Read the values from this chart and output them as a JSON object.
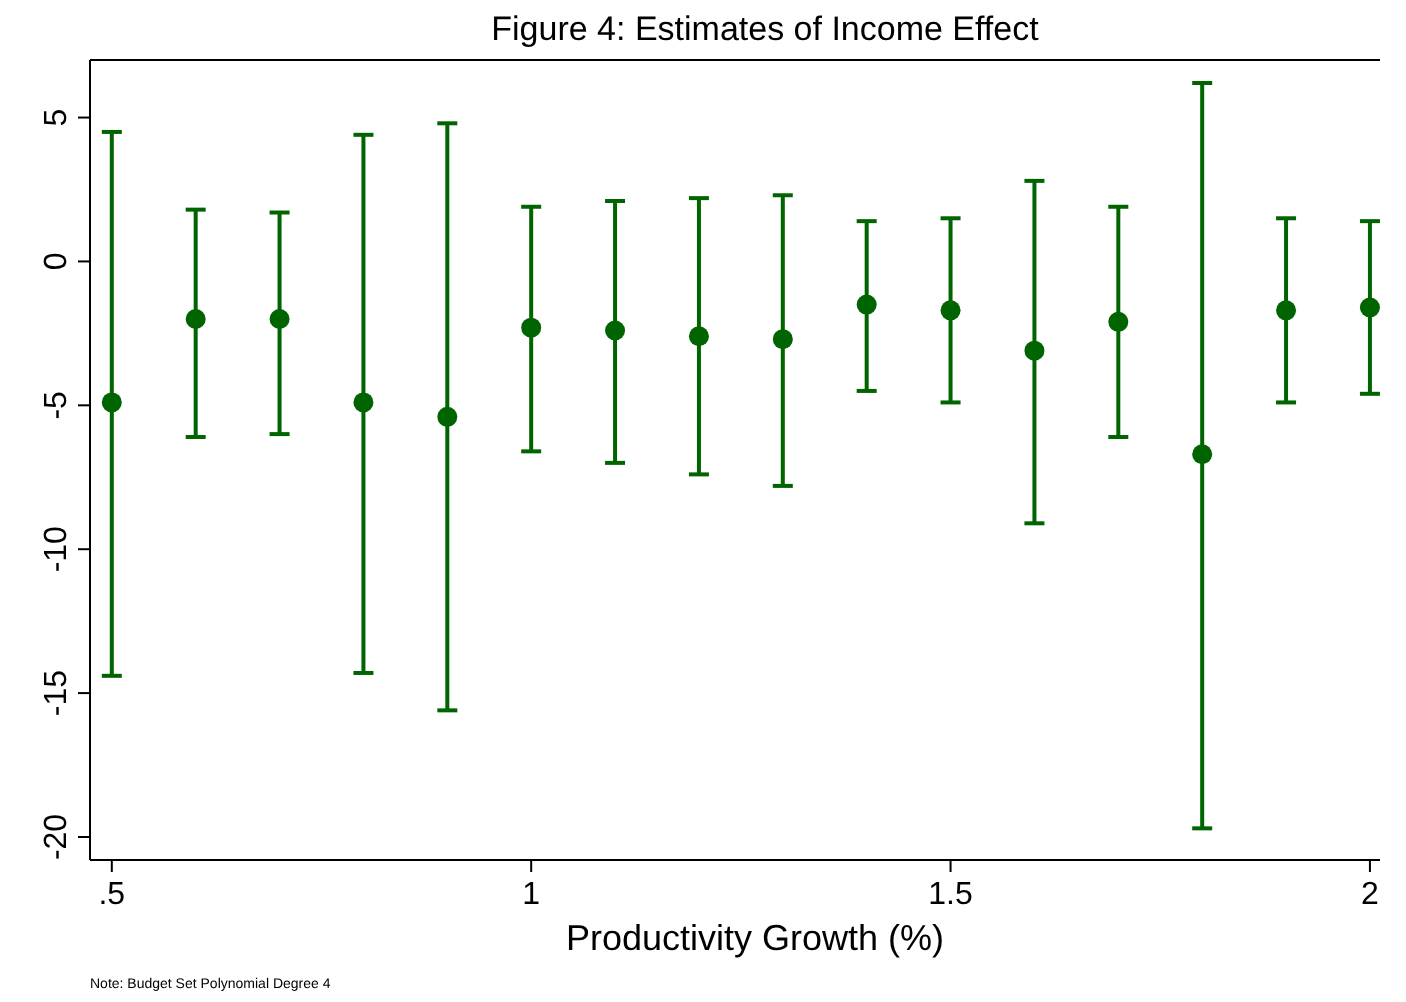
{
  "chart_data": {
    "type": "scatter",
    "title": "Figure 4: Estimates of Income Effect",
    "xlabel": "Productivity Growth (%)",
    "x": [
      0.5,
      0.6,
      0.7,
      0.8,
      0.9,
      1.0,
      1.1,
      1.2,
      1.3,
      1.4,
      1.5,
      1.6,
      1.7,
      1.8,
      1.9,
      2.0
    ],
    "series": [
      {
        "color": "#006400",
        "values": [
          -4.9,
          -2.0,
          -2.0,
          -4.9,
          -5.4,
          -2.3,
          -2.4,
          -2.6,
          -2.7,
          -1.5,
          -1.7,
          -3.1,
          -2.1,
          -6.7,
          -1.7,
          -1.6
        ],
        "errors": [
          [
            -14.4,
            4.5
          ],
          [
            -6.1,
            1.8
          ],
          [
            -6.0,
            1.7
          ],
          [
            -14.3,
            4.4
          ],
          [
            -15.6,
            4.8
          ],
          [
            -6.6,
            1.9
          ],
          [
            -7.0,
            2.1
          ],
          [
            -7.4,
            2.2
          ],
          [
            -7.8,
            2.3
          ],
          [
            -4.5,
            1.4
          ],
          [
            -4.9,
            1.5
          ],
          [
            -9.1,
            2.8
          ],
          [
            -6.1,
            1.9
          ],
          [
            -19.7,
            6.2
          ],
          [
            -4.9,
            1.5
          ],
          [
            -4.6,
            1.4
          ]
        ]
      }
    ],
    "xlim": [
      0.474,
      2.012
    ],
    "ylim": [
      -20.8,
      7
    ],
    "xticks": [
      {
        "value": 0.5,
        "label": ".5"
      },
      1,
      1.5,
      2
    ],
    "yticks": [
      -20,
      -15,
      -10,
      -5,
      0,
      5
    ],
    "marker": "circle",
    "grid": false,
    "annotations": [
      "Note: Budget Set Polynomial Degree 4"
    ]
  }
}
